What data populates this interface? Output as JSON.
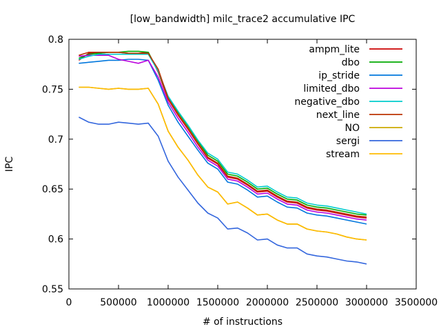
{
  "chart_data": {
    "type": "line",
    "title": "[low_bandwidth] milc_trace2 accumulative IPC",
    "xlabel": "# of instructions",
    "ylabel": "IPC",
    "xlim": [
      0,
      3500000
    ],
    "ylim": [
      0.55,
      0.8
    ],
    "xticks": [
      0,
      500000,
      1000000,
      1500000,
      2000000,
      2500000,
      3000000,
      3500000
    ],
    "xtick_labels": [
      "0",
      "500000",
      "1000000",
      "1500000",
      "2000000",
      "2500000",
      "3000000",
      "3500000"
    ],
    "yticks": [
      0.55,
      0.6,
      0.65,
      0.7,
      0.75,
      0.8
    ],
    "ytick_labels": [
      "0.55",
      "0.6",
      "0.65",
      "0.7",
      "0.75",
      "0.8"
    ],
    "grid": false,
    "legend_position": "top-right",
    "x": [
      100000,
      200000,
      300000,
      400000,
      500000,
      600000,
      700000,
      800000,
      900000,
      1000000,
      1100000,
      1200000,
      1300000,
      1400000,
      1500000,
      1600000,
      1700000,
      1800000,
      1900000,
      2000000,
      2100000,
      2200000,
      2300000,
      2400000,
      2500000,
      2600000,
      2700000,
      2800000,
      2900000,
      3000000
    ],
    "series": [
      {
        "name": "ampm_lite",
        "color": "#cc0000",
        "values": [
          0.779,
          0.786,
          0.786,
          0.787,
          0.787,
          0.786,
          0.786,
          0.787,
          0.767,
          0.74,
          0.724,
          0.71,
          0.695,
          0.681,
          0.675,
          0.662,
          0.66,
          0.654,
          0.647,
          0.648,
          0.642,
          0.637,
          0.636,
          0.631,
          0.629,
          0.628,
          0.626,
          0.624,
          0.622,
          0.621
        ]
      },
      {
        "name": "dbo",
        "color": "#00aa00",
        "values": [
          0.781,
          0.785,
          0.786,
          0.787,
          0.787,
          0.788,
          0.788,
          0.787,
          0.768,
          0.742,
          0.727,
          0.713,
          0.698,
          0.684,
          0.678,
          0.665,
          0.663,
          0.657,
          0.65,
          0.651,
          0.645,
          0.64,
          0.639,
          0.634,
          0.632,
          0.631,
          0.629,
          0.627,
          0.625,
          0.624
        ]
      },
      {
        "name": "ip_stride",
        "color": "#0077dd",
        "values": [
          0.776,
          0.777,
          0.778,
          0.779,
          0.779,
          0.78,
          0.78,
          0.779,
          0.759,
          0.734,
          0.717,
          0.703,
          0.689,
          0.676,
          0.67,
          0.657,
          0.655,
          0.649,
          0.642,
          0.643,
          0.637,
          0.632,
          0.631,
          0.626,
          0.624,
          0.623,
          0.621,
          0.619,
          0.617,
          0.615
        ]
      },
      {
        "name": "limited_dbo",
        "color": "#bb00dd",
        "values": [
          0.783,
          0.784,
          0.784,
          0.784,
          0.78,
          0.778,
          0.776,
          0.779,
          0.762,
          0.737,
          0.721,
          0.707,
          0.692,
          0.679,
          0.673,
          0.66,
          0.658,
          0.652,
          0.645,
          0.646,
          0.64,
          0.635,
          0.634,
          0.629,
          0.627,
          0.626,
          0.624,
          0.622,
          0.62,
          0.619
        ]
      },
      {
        "name": "negative_dbo",
        "color": "#00cccc",
        "values": [
          0.78,
          0.783,
          0.785,
          0.785,
          0.785,
          0.785,
          0.785,
          0.785,
          0.768,
          0.743,
          0.728,
          0.714,
          0.699,
          0.686,
          0.68,
          0.667,
          0.665,
          0.659,
          0.652,
          0.653,
          0.647,
          0.642,
          0.641,
          0.636,
          0.634,
          0.633,
          0.631,
          0.629,
          0.627,
          0.625
        ]
      },
      {
        "name": "next_line",
        "color": "#bb3300",
        "values": [
          0.784,
          0.787,
          0.787,
          0.787,
          0.787,
          0.786,
          0.786,
          0.786,
          0.77,
          0.741,
          0.725,
          0.711,
          0.696,
          0.682,
          0.676,
          0.663,
          0.661,
          0.655,
          0.648,
          0.649,
          0.643,
          0.638,
          0.637,
          0.632,
          0.63,
          0.629,
          0.627,
          0.625,
          0.623,
          0.622
        ]
      },
      {
        "name": "NO",
        "color": "#ccaa00",
        "values": [
          0.752,
          0.752,
          0.751,
          0.75,
          0.751,
          0.75,
          0.75,
          0.751,
          0.735,
          0.708,
          0.692,
          0.679,
          0.664,
          0.652,
          0.647,
          0.635,
          0.637,
          0.631,
          0.624,
          0.625,
          0.619,
          0.615,
          0.615,
          0.61,
          0.608,
          0.607,
          0.605,
          0.602,
          0.6,
          0.599
        ]
      },
      {
        "name": "sergi",
        "color": "#3366dd",
        "values": [
          0.722,
          0.717,
          0.715,
          0.715,
          0.717,
          0.716,
          0.715,
          0.716,
          0.703,
          0.678,
          0.662,
          0.649,
          0.636,
          0.626,
          0.621,
          0.61,
          0.611,
          0.606,
          0.599,
          0.6,
          0.594,
          0.591,
          0.591,
          0.585,
          0.583,
          0.582,
          0.58,
          0.578,
          0.577,
          0.575
        ]
      },
      {
        "name": "stream",
        "color": "#ffbb00",
        "values": [
          0.752,
          0.752,
          0.751,
          0.75,
          0.751,
          0.75,
          0.75,
          0.751,
          0.735,
          0.708,
          0.692,
          0.679,
          0.664,
          0.652,
          0.647,
          0.635,
          0.637,
          0.631,
          0.624,
          0.625,
          0.619,
          0.615,
          0.615,
          0.61,
          0.608,
          0.607,
          0.605,
          0.602,
          0.6,
          0.599
        ]
      }
    ]
  }
}
